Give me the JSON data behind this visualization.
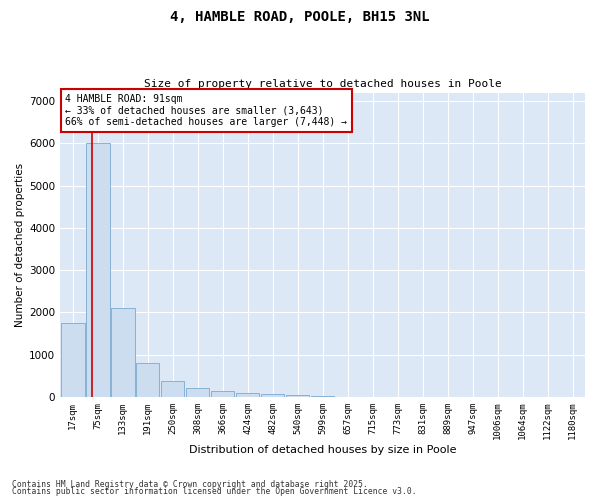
{
  "title1": "4, HAMBLE ROAD, POOLE, BH15 3NL",
  "title2": "Size of property relative to detached houses in Poole",
  "xlabel": "Distribution of detached houses by size in Poole",
  "ylabel": "Number of detached properties",
  "bar_labels": [
    "17sqm",
    "75sqm",
    "133sqm",
    "191sqm",
    "250sqm",
    "308sqm",
    "366sqm",
    "424sqm",
    "482sqm",
    "540sqm",
    "599sqm",
    "657sqm",
    "715sqm",
    "773sqm",
    "831sqm",
    "889sqm",
    "947sqm",
    "1006sqm",
    "1064sqm",
    "1122sqm",
    "1180sqm"
  ],
  "bar_values": [
    1750,
    6000,
    2100,
    800,
    380,
    220,
    140,
    100,
    60,
    40,
    25,
    10,
    5,
    3,
    2,
    1,
    0,
    0,
    0,
    0,
    0
  ],
  "bar_color": "#ccddf0",
  "bar_edge_color": "#7aaad0",
  "marker_color": "#cc0000",
  "annotation_title": "4 HAMBLE ROAD: 91sqm",
  "annotation_line1": "← 33% of detached houses are smaller (3,643)",
  "annotation_line2": "66% of semi-detached houses are larger (7,448) →",
  "annotation_box_color": "#ffffff",
  "annotation_border_color": "#cc0000",
  "ylim": [
    0,
    7200
  ],
  "yticks": [
    0,
    1000,
    2000,
    3000,
    4000,
    5000,
    6000,
    7000
  ],
  "bg_color": "#dce8f5",
  "footer1": "Contains HM Land Registry data © Crown copyright and database right 2025.",
  "footer2": "Contains public sector information licensed under the Open Government Licence v3.0."
}
